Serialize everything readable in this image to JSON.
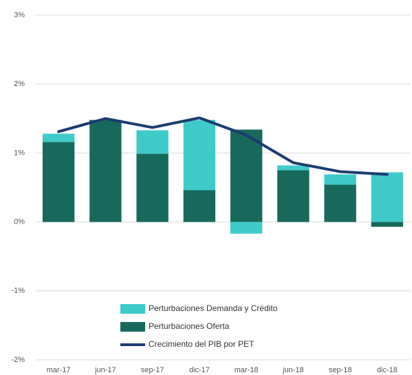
{
  "chart_data": {
    "type": "bar",
    "categories": [
      "mar-17",
      "jun-17",
      "sep-17",
      "dic-17",
      "mar-18",
      "jun-18",
      "sep-18",
      "dic-18"
    ],
    "series": [
      {
        "name": "Perturbaciones Demanda y Crédito",
        "type": "bar",
        "color": "#3fcaca",
        "values": [
          0.12,
          0,
          0.34,
          1.02,
          -0.17,
          0.07,
          0.15,
          0.72
        ]
      },
      {
        "name": "Perturbaciones Oferta",
        "type": "bar",
        "color": "#17695c",
        "values": [
          1.16,
          1.48,
          0.99,
          0.46,
          1.34,
          0.75,
          0.54,
          -0.07
        ]
      },
      {
        "name": "Crecimiento del PIB por PET",
        "type": "line",
        "color": "#1b3b70",
        "values": [
          1.31,
          1.5,
          1.37,
          1.51,
          1.26,
          0.86,
          0.73,
          0.69
        ]
      }
    ],
    "ylim": [
      -2,
      3
    ],
    "yticks": [
      {
        "value": -2,
        "label": "-2%"
      },
      {
        "value": -1,
        "label": "-1%"
      },
      {
        "value": 0,
        "label": "0%"
      },
      {
        "value": 1,
        "label": "1%"
      },
      {
        "value": 2,
        "label": "2%"
      },
      {
        "value": 3,
        "label": "3%"
      }
    ],
    "grid": true
  }
}
